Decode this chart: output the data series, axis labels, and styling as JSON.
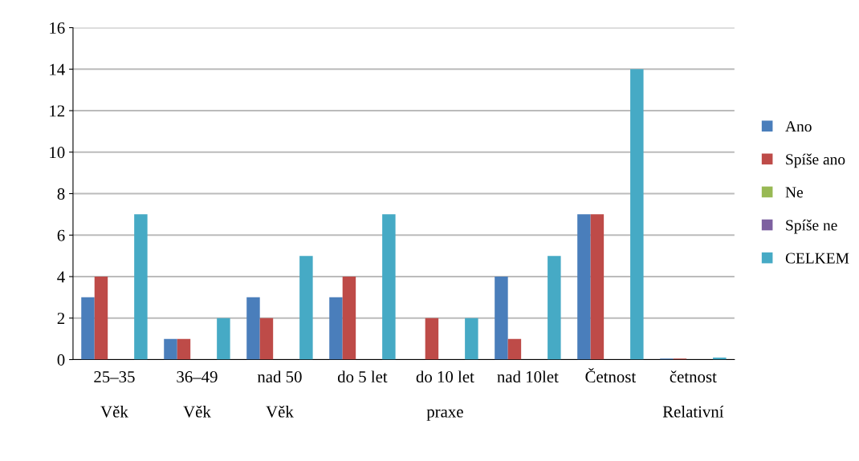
{
  "chart_data": {
    "type": "bar",
    "categories": [
      "25–35\n\nVěk",
      "36–49\n\nVěk",
      "nad 50\n\nVěk",
      "do 5 let",
      "do 10 let\n\npraxe",
      "nad 10let",
      "Četnost",
      "četnost\n\nRelativní"
    ],
    "series": [
      {
        "name": "Ano",
        "color": "#4a7ebb",
        "values": [
          3,
          1,
          3,
          3,
          0,
          4,
          7,
          0.05
        ]
      },
      {
        "name": "Spíše ano",
        "color": "#be4b48",
        "values": [
          4,
          1,
          2,
          4,
          2,
          1,
          7,
          0.05
        ]
      },
      {
        "name": "Ne",
        "color": "#98b954",
        "values": [
          0,
          0,
          0,
          0,
          0,
          0,
          0,
          0
        ]
      },
      {
        "name": "Spíše ne",
        "color": "#7d60a0",
        "values": [
          0,
          0,
          0,
          0,
          0,
          0,
          0,
          0
        ]
      },
      {
        "name": "CELKEM",
        "color": "#46aac5",
        "values": [
          7,
          2,
          5,
          7,
          2,
          5,
          14,
          0.1
        ]
      }
    ],
    "ylim": [
      0,
      16
    ],
    "yticks": [
      0,
      2,
      4,
      6,
      8,
      10,
      12,
      14,
      16
    ],
    "grid": "y",
    "legend": "right"
  }
}
